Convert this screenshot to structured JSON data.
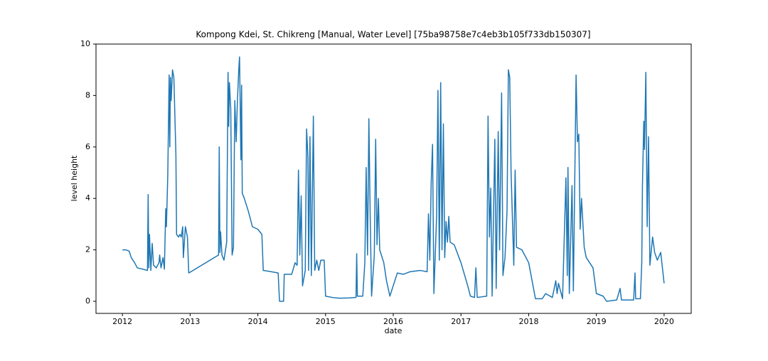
{
  "chart_data": {
    "type": "line",
    "title": "Kompong Kdei, St. Chikreng [Manual, Water Level] [75ba98758e7c4eb3b105f733db150307]",
    "x_label": "date",
    "y_label": "level height",
    "color": "#1f77b4",
    "xlim": [
      2011.61,
      2020.4
    ],
    "xticks": [
      2012,
      2013,
      2014,
      2015,
      2016,
      2017,
      2018,
      2019,
      2020
    ],
    "ylim": [
      -0.47,
      10
    ],
    "yticks": [
      0,
      2,
      4,
      6,
      8,
      10
    ],
    "x": [
      2012.0,
      2012.05,
      2012.1,
      2012.13,
      2012.18,
      2012.22,
      2012.3,
      2012.37,
      2012.38,
      2012.39,
      2012.4,
      2012.42,
      2012.44,
      2012.46,
      2012.5,
      2012.54,
      2012.55,
      2012.57,
      2012.6,
      2012.62,
      2012.64,
      2012.65,
      2012.67,
      2012.69,
      2012.7,
      2012.71,
      2012.72,
      2012.74,
      2012.76,
      2012.79,
      2012.8,
      2012.83,
      2012.85,
      2012.87,
      2012.89,
      2012.9,
      2012.93,
      2012.96,
      2012.98,
      2013.42,
      2013.43,
      2013.44,
      2013.45,
      2013.47,
      2013.5,
      2013.54,
      2013.56,
      2013.57,
      2013.58,
      2013.6,
      2013.62,
      2013.64,
      2013.66,
      2013.68,
      2013.7,
      2013.72,
      2013.73,
      2013.75,
      2013.76,
      2013.77,
      2013.8,
      2013.86,
      2013.92,
      2014.0,
      2014.06,
      2014.08,
      2014.2,
      2014.3,
      2014.32,
      2014.38,
      2014.39,
      2014.5,
      2014.55,
      2014.58,
      2014.6,
      2014.62,
      2014.64,
      2014.66,
      2014.7,
      2014.72,
      2014.74,
      2014.75,
      2014.77,
      2014.79,
      2014.82,
      2014.84,
      2014.87,
      2014.9,
      2014.93,
      2014.98,
      2015.0,
      2015.1,
      2015.2,
      2015.35,
      2015.45,
      2015.46,
      2015.47,
      2015.55,
      2015.58,
      2015.6,
      2015.62,
      2015.64,
      2015.66,
      2015.68,
      2015.72,
      2015.74,
      2015.76,
      2015.78,
      2015.8,
      2015.86,
      2015.9,
      2015.95,
      2016.06,
      2016.15,
      2016.25,
      2016.4,
      2016.5,
      2016.52,
      2016.54,
      2016.56,
      2016.58,
      2016.6,
      2016.62,
      2016.64,
      2016.66,
      2016.68,
      2016.7,
      2016.72,
      2016.74,
      2016.76,
      2016.78,
      2016.8,
      2016.82,
      2016.84,
      2016.9,
      2017.0,
      2017.1,
      2017.14,
      2017.2,
      2017.22,
      2017.24,
      2017.38,
      2017.4,
      2017.42,
      2017.44,
      2017.46,
      2017.5,
      2017.52,
      2017.55,
      2017.57,
      2017.6,
      2017.62,
      2017.65,
      2017.68,
      2017.7,
      2017.72,
      2017.74,
      2017.78,
      2017.8,
      2017.82,
      2017.9,
      2018.0,
      2018.05,
      2018.1,
      2018.2,
      2018.25,
      2018.35,
      2018.4,
      2018.42,
      2018.44,
      2018.5,
      2018.55,
      2018.57,
      2018.58,
      2018.6,
      2018.64,
      2018.66,
      2018.7,
      2018.72,
      2018.74,
      2018.76,
      2018.78,
      2018.82,
      2018.85,
      2018.95,
      2019.0,
      2019.1,
      2019.15,
      2019.3,
      2019.35,
      2019.37,
      2019.55,
      2019.57,
      2019.58,
      2019.65,
      2019.67,
      2019.68,
      2019.7,
      2019.71,
      2019.73,
      2019.75,
      2019.77,
      2019.79,
      2019.83,
      2019.86,
      2019.9,
      2019.95,
      2020.0
    ],
    "values": [
      2.0,
      2.0,
      1.95,
      1.7,
      1.5,
      1.3,
      1.25,
      1.2,
      4.15,
      1.3,
      2.6,
      1.2,
      2.25,
      1.4,
      1.3,
      1.5,
      1.8,
      1.3,
      1.7,
      1.25,
      3.6,
      2.9,
      4.9,
      8.8,
      6.0,
      8.7,
      7.8,
      9.0,
      8.7,
      5.7,
      2.6,
      2.5,
      2.6,
      2.5,
      2.9,
      1.7,
      2.9,
      2.5,
      1.1,
      1.8,
      6.0,
      1.9,
      2.7,
      1.8,
      1.6,
      2.3,
      8.9,
      6.8,
      8.5,
      7.5,
      1.8,
      2.1,
      7.8,
      6.2,
      7.9,
      9.1,
      9.5,
      5.5,
      8.4,
      4.2,
      4.0,
      3.5,
      2.9,
      2.8,
      2.6,
      1.2,
      1.15,
      1.1,
      0.0,
      0.0,
      1.05,
      1.05,
      1.5,
      1.4,
      5.1,
      1.8,
      4.1,
      0.6,
      1.2,
      6.7,
      5.6,
      1.2,
      6.4,
      1.0,
      7.2,
      1.2,
      1.6,
      1.2,
      1.6,
      1.6,
      0.2,
      0.15,
      0.12,
      0.13,
      0.15,
      1.85,
      0.2,
      0.2,
      1.5,
      5.2,
      1.8,
      7.1,
      3.2,
      0.2,
      1.8,
      6.3,
      2.2,
      4.0,
      2.0,
      1.5,
      0.8,
      0.2,
      1.1,
      1.05,
      1.15,
      1.2,
      1.15,
      3.4,
      1.6,
      4.6,
      6.1,
      0.3,
      1.8,
      3.3,
      8.2,
      1.6,
      8.5,
      2.0,
      6.9,
      1.7,
      3.1,
      2.3,
      3.3,
      2.3,
      2.2,
      1.5,
      0.6,
      0.2,
      0.15,
      1.3,
      0.15,
      0.2,
      7.2,
      2.5,
      4.4,
      0.2,
      6.3,
      0.5,
      6.6,
      2.0,
      8.1,
      1.0,
      1.7,
      3.5,
      9.0,
      8.7,
      5.0,
      1.4,
      5.1,
      2.1,
      2.0,
      1.5,
      0.8,
      0.1,
      0.1,
      0.3,
      0.15,
      0.8,
      0.3,
      0.7,
      0.1,
      4.8,
      1.0,
      5.2,
      0.3,
      4.5,
      0.4,
      8.8,
      6.2,
      6.5,
      2.8,
      4.0,
      2.1,
      1.7,
      1.3,
      0.3,
      0.2,
      0.0,
      0.05,
      0.5,
      0.05,
      0.05,
      1.1,
      0.1,
      0.1,
      1.5,
      4.5,
      7.0,
      5.9,
      8.9,
      2.9,
      6.4,
      1.4,
      2.5,
      1.9,
      1.6,
      1.9,
      0.7
    ]
  }
}
